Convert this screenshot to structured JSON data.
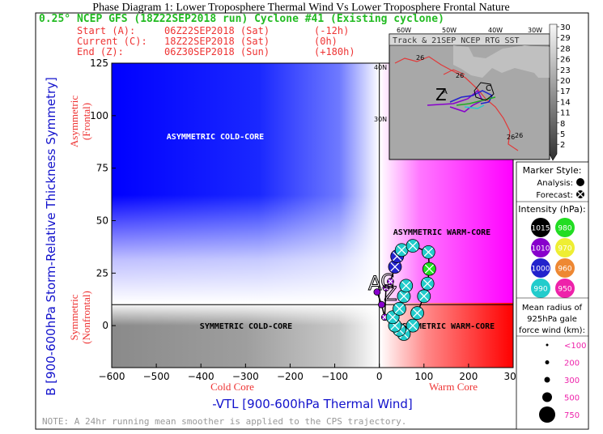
{
  "figure": {
    "title": "Phase Diagram 1: Lower Troposphere Thermal Wind Vs Lower Troposphere Frontal Nature",
    "model_line": "0.25° NCEP GFS (18Z22SEP2018 run) Cyclone #41 (Existing cyclone)",
    "start": {
      "label": "Start (A):",
      "time": "06Z22SEP2018 (Sat)",
      "offset": "(-12h)"
    },
    "current": {
      "label": "Current (C):",
      "time": "18Z22SEP2018 (Sat)",
      "offset": "(0h)"
    },
    "end": {
      "label": "End (Z):",
      "time": "06Z30SEP2018 (Sun)",
      "offset": "(+180h)"
    },
    "note": "NOTE:  A 24hr running mean smoother is applied to the CPS trajectory."
  },
  "regions": {
    "asym_cold": "ASYMMETRIC COLD-CORE",
    "asym_warm": "ASYMMETRIC WARM-CORE",
    "sym_cold": "SYMMETRIC COLD-CORE",
    "sym_warm": "SYMMETRIC WARM-CORE"
  },
  "axis_annotations": {
    "asymmetric": "Asymmetric",
    "frontal": "(Frontal)",
    "symmetric": "Symmetric",
    "nonfrontal": "(Nonfrontal)",
    "cold_core": "Cold Core",
    "warm_core": "Warm Core"
  },
  "inset": {
    "title": "Track & 21SEP NCEP RTG SST",
    "lon_labels": [
      "60W",
      "50W",
      "40W",
      "30W"
    ],
    "lat_labels": [
      "40N",
      "30N"
    ],
    "sst_labels": [
      "26",
      "26",
      "26",
      "26"
    ],
    "track_marks": [
      "A",
      "C",
      "Z"
    ],
    "colorbar_labels": [
      "30",
      "29",
      "28",
      "26",
      "23",
      "20",
      "17",
      "14",
      "11",
      "8",
      "5",
      "2"
    ]
  },
  "legend": {
    "marker_style_title": "Marker Style:",
    "analysis_label": "Analysis:",
    "forecast_label": "Forecast:",
    "intensity_title": "Intensity (hPa):",
    "intensity": [
      {
        "label": "1015",
        "color": "#000000"
      },
      {
        "label": "980",
        "color": "#22dd22"
      },
      {
        "label": "1010",
        "color": "#8800cc"
      },
      {
        "label": "970",
        "color": "#eeee33"
      },
      {
        "label": "1000",
        "color": "#2222cc"
      },
      {
        "label": "960",
        "color": "#ee8833"
      },
      {
        "label": "990",
        "color": "#22cccc"
      },
      {
        "label": "950",
        "color": "#ee22aa"
      }
    ],
    "radius_title_1": "Mean radius of",
    "radius_title_2": "925hPa gale",
    "radius_title_3": "force wind (km):",
    "radius_values": [
      "<100",
      "200",
      "300",
      "500",
      "750"
    ]
  },
  "chart_data": {
    "type": "scatter",
    "title": "Phase Diagram 1: Lower Troposphere Thermal Wind Vs Lower Troposphere Frontal Nature",
    "xlabel": "-VTL [900-600hPa Thermal Wind]",
    "ylabel": "B [900-600hPa Storm-Relative Thickness Symmetry]",
    "xlim": [
      -600,
      300
    ],
    "ylim": [
      -20,
      125
    ],
    "xticks": [
      -600,
      -500,
      -400,
      -300,
      -200,
      -100,
      0,
      100,
      200,
      300
    ],
    "yticks": [
      0,
      25,
      50,
      75,
      100,
      125
    ],
    "grid": false,
    "reference_lines": {
      "x": 0,
      "y": 10
    },
    "series": [
      {
        "points": [
          {
            "x": -5,
            "y": 16,
            "color": "#8800cc"
          },
          {
            "x": 5,
            "y": 10,
            "color": "#8800cc"
          },
          {
            "x": 12,
            "y": 4,
            "color": "#8800cc"
          },
          {
            "x": 15,
            "y": 18,
            "color": "#8800cc"
          },
          {
            "x": 25,
            "y": 21,
            "color": "#8800cc"
          },
          {
            "x": 35,
            "y": 28,
            "color": "#2222cc"
          },
          {
            "x": 40,
            "y": 33,
            "color": "#2222cc"
          },
          {
            "x": 50,
            "y": 36,
            "color": "#22cccc"
          },
          {
            "x": 75,
            "y": 38,
            "color": "#22cccc"
          },
          {
            "x": 110,
            "y": 35,
            "color": "#22cccc"
          },
          {
            "x": 112,
            "y": 27,
            "color": "#22dd22"
          },
          {
            "x": 108,
            "y": 20,
            "color": "#22cccc"
          },
          {
            "x": 100,
            "y": 14,
            "color": "#22cccc"
          },
          {
            "x": 85,
            "y": 6,
            "color": "#22cccc"
          },
          {
            "x": 75,
            "y": 0,
            "color": "#22cccc"
          },
          {
            "x": 55,
            "y": -4,
            "color": "#22cccc"
          },
          {
            "x": 45,
            "y": -2,
            "color": "#22cccc"
          },
          {
            "x": 35,
            "y": 0,
            "color": "#22cccc"
          },
          {
            "x": 30,
            "y": 4,
            "color": "#22cccc"
          },
          {
            "x": 45,
            "y": 8,
            "color": "#22cccc"
          },
          {
            "x": 55,
            "y": 14,
            "color": "#22cccc"
          },
          {
            "x": 60,
            "y": 19,
            "color": "#22cccc"
          }
        ]
      }
    ],
    "marks": [
      {
        "label": "A",
        "x": -10,
        "y": 17
      },
      {
        "label": "C",
        "x": 18,
        "y": 18
      },
      {
        "label": "Z",
        "x": 25,
        "y": 12
      }
    ]
  }
}
